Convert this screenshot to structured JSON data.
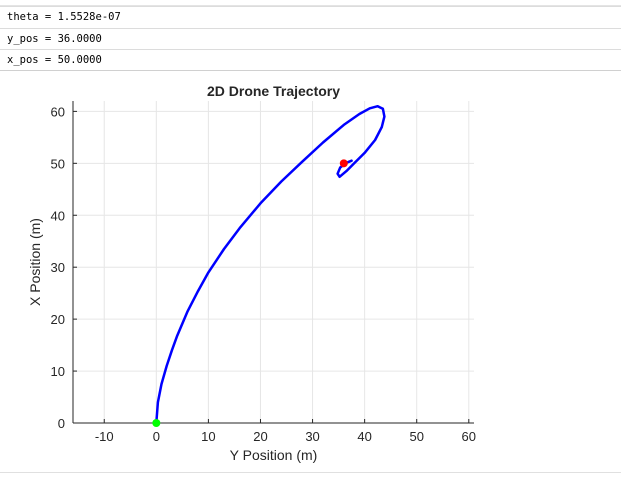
{
  "outputs": [
    "theta = 1.5528e-07",
    "y_pos = 36.0000",
    "x_pos = 50.0000"
  ],
  "chart_data": {
    "type": "line",
    "title": "2D Drone Trajectory",
    "xlabel": "Y Position (m)",
    "ylabel": "X Position (m)",
    "xlim": [
      -16,
      61
    ],
    "ylim": [
      0,
      62
    ],
    "xticks": [
      -10,
      0,
      10,
      20,
      30,
      40,
      50,
      60
    ],
    "yticks": [
      0,
      10,
      20,
      30,
      40,
      50,
      60
    ],
    "grid": true,
    "series": [
      {
        "color": "#0000ff",
        "x": [
          0,
          0.3,
          1,
          2,
          3,
          4,
          6,
          8,
          10,
          13,
          16,
          20,
          24,
          28,
          32,
          36,
          39,
          41,
          42.5,
          43.5,
          43.8,
          43.3,
          42,
          40,
          38,
          36.5,
          35.2,
          34.8,
          35.3,
          36.5,
          37.5
        ],
        "y": [
          0,
          4,
          7.5,
          11,
          14,
          16.8,
          21.5,
          25.4,
          29,
          33.5,
          37.5,
          42.3,
          46.5,
          50.3,
          54,
          57.4,
          59.5,
          60.6,
          61,
          60.5,
          59,
          57,
          54.5,
          52,
          50,
          48.5,
          47.4,
          48,
          49.2,
          50.1,
          50.5
        ]
      }
    ],
    "markers": [
      {
        "name": "start",
        "x": 0,
        "y": 0,
        "color": "#00ff00"
      },
      {
        "name": "current",
        "x": 36,
        "y": 50,
        "color": "#ff0000"
      }
    ]
  }
}
